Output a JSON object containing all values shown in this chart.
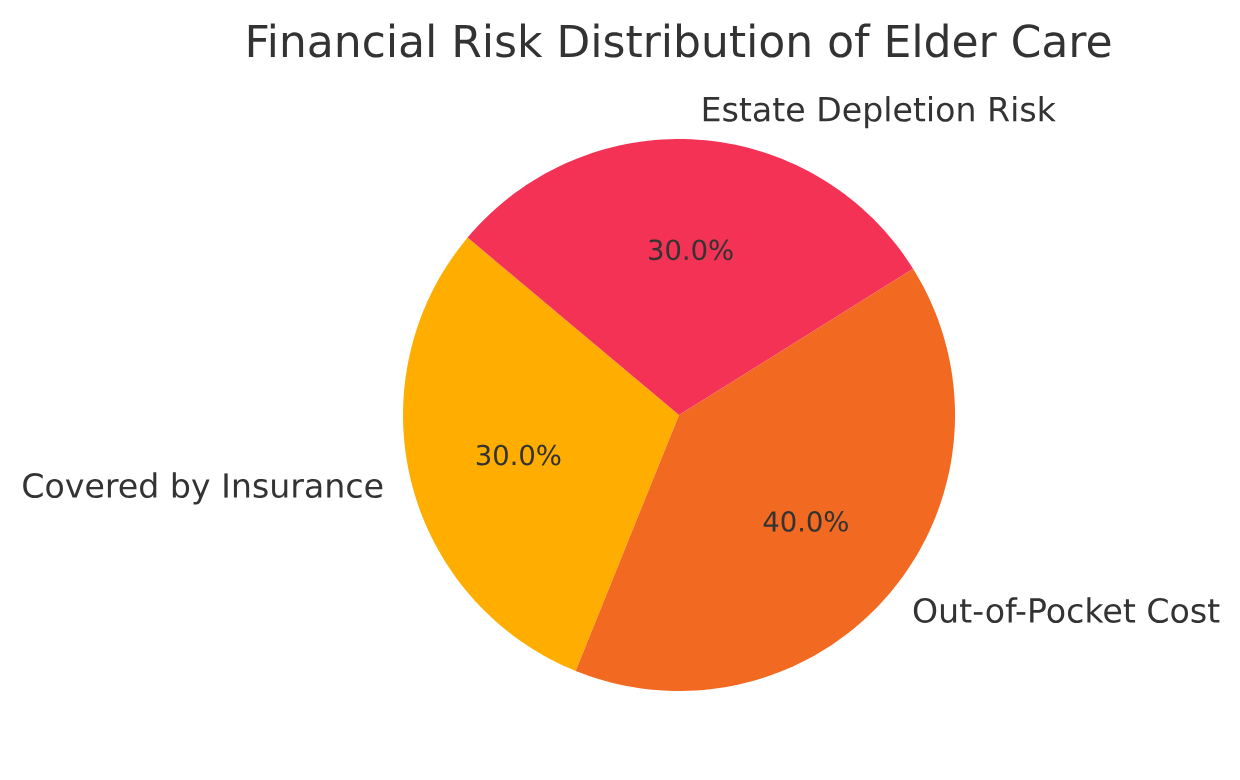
{
  "chart_data": {
    "type": "pie",
    "title": "Financial Risk Distribution of Elder Care",
    "categories": [
      "Covered by Insurance",
      "Out-of-Pocket Cost",
      "Estate Depletion Risk"
    ],
    "values": [
      30,
      40,
      30
    ],
    "colors": [
      "#ffae00",
      "#f26a21",
      "#f43256"
    ],
    "value_labels": [
      "30.0%",
      "40.0%",
      "30.0%"
    ],
    "legend": false
  }
}
